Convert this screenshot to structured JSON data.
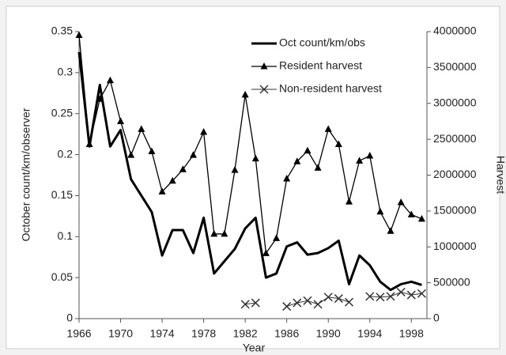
{
  "chart_data": {
    "type": "line",
    "xlabel": "Year",
    "ylabel": "October count/km/observer",
    "y2label": "Harvest",
    "x": [
      1966,
      1967,
      1968,
      1969,
      1970,
      1971,
      1972,
      1973,
      1974,
      1975,
      1976,
      1977,
      1978,
      1979,
      1980,
      1981,
      1982,
      1983,
      1984,
      1985,
      1986,
      1987,
      1988,
      1989,
      1990,
      1991,
      1992,
      1993,
      1994,
      1995,
      1996,
      1997,
      1998,
      1999
    ],
    "xlim": [
      1966,
      1999.5
    ],
    "xticks": [
      1966,
      1970,
      1974,
      1978,
      1982,
      1986,
      1990,
      1994,
      1998
    ],
    "ylim": [
      0,
      0.35
    ],
    "yticks": [
      0,
      0.05,
      0.1,
      0.15,
      0.2,
      0.25,
      0.3,
      0.35
    ],
    "y2lim": [
      0,
      4000000
    ],
    "y2ticks": [
      0,
      500000,
      1000000,
      1500000,
      2000000,
      2500000,
      3000000,
      3500000,
      4000000
    ],
    "legend": "top-right",
    "series": [
      {
        "name": "Oct count/km/obs",
        "color": "#000000",
        "line_width": 3,
        "marker": "none",
        "axis": "y",
        "values": [
          0.325,
          0.21,
          0.285,
          0.21,
          0.23,
          0.17,
          0.15,
          0.13,
          0.077,
          0.108,
          0.108,
          0.08,
          0.123,
          0.055,
          0.07,
          0.085,
          0.11,
          0.123,
          0.05,
          0.055,
          0.088,
          0.093,
          0.078,
          0.08,
          0.086,
          0.095,
          0.042,
          0.077,
          0.065,
          0.045,
          0.035,
          0.042,
          0.045,
          0.041
        ]
      },
      {
        "name": "Resident harvest",
        "color": "#000000",
        "line_width": 1.3,
        "marker": "triangle",
        "axis": "y2",
        "values": [
          3950000,
          2430000,
          3060000,
          3320000,
          2750000,
          2280000,
          2640000,
          2330000,
          1770000,
          1920000,
          2080000,
          2280000,
          2600000,
          1180000,
          1180000,
          2070000,
          3120000,
          2230000,
          910000,
          1120000,
          1950000,
          2190000,
          2340000,
          2100000,
          2640000,
          2430000,
          1630000,
          2200000,
          2270000,
          1490000,
          1220000,
          1620000,
          1450000,
          1390000
        ]
      },
      {
        "name": "Non-resident harvest",
        "color": "#333333",
        "line_width": 1,
        "marker": "x",
        "axis": "y2",
        "values": [
          null,
          null,
          null,
          null,
          null,
          null,
          null,
          null,
          null,
          null,
          null,
          null,
          null,
          null,
          null,
          null,
          200000,
          220000,
          null,
          null,
          170000,
          220000,
          250000,
          200000,
          300000,
          280000,
          230000,
          null,
          310000,
          300000,
          310000,
          370000,
          330000,
          350000
        ]
      }
    ]
  }
}
